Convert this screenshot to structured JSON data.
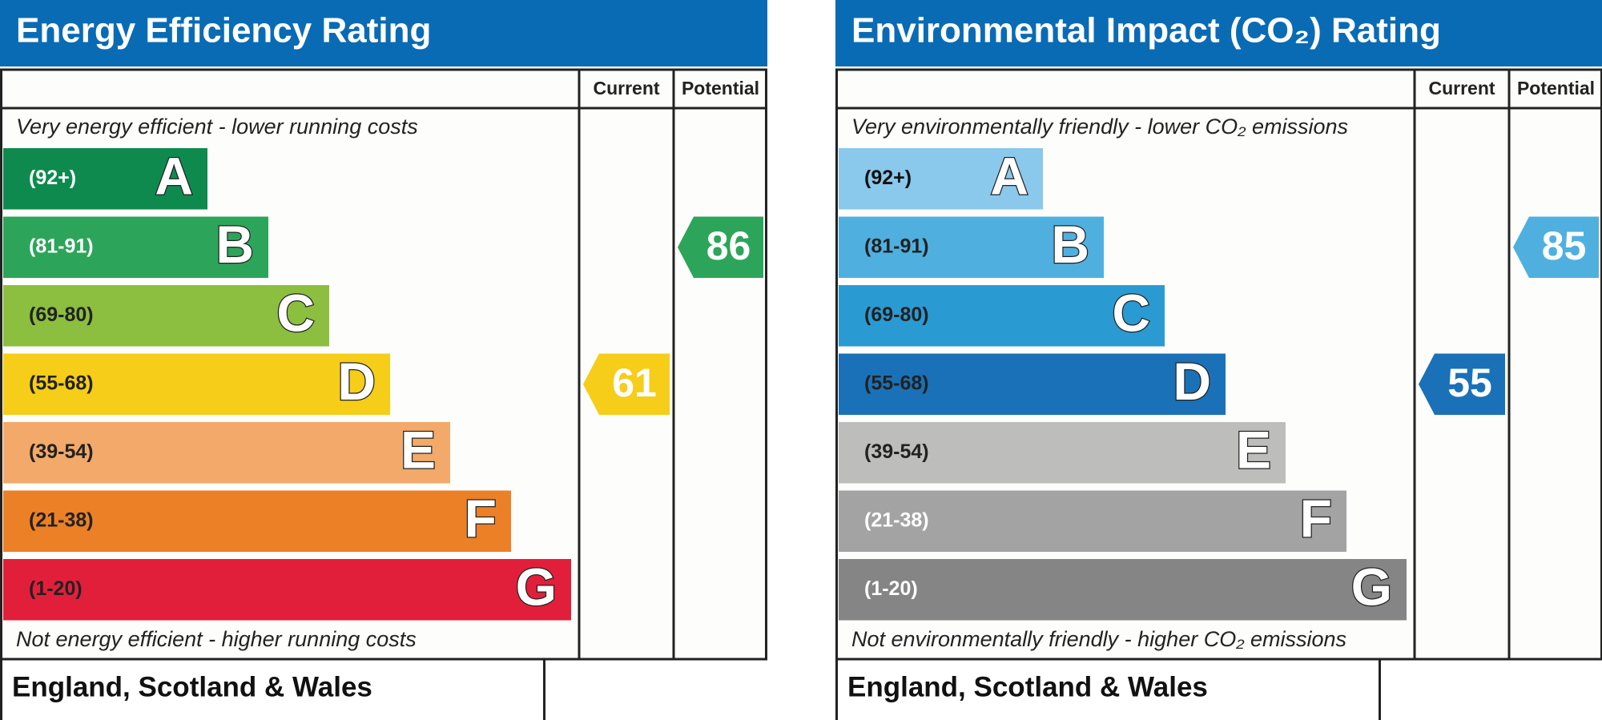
{
  "chart_data": [
    {
      "type": "rating",
      "title": "Energy Efficiency Rating",
      "columns": [
        "Current",
        "Potential"
      ],
      "top_label": "Very energy efficient - lower running costs",
      "bottom_label": "Not energy efficient - higher running costs",
      "bands": [
        {
          "range": "(92+)",
          "letter": "A",
          "color": "#0f8a4f",
          "text_color": "#ffffff"
        },
        {
          "range": "(81-91)",
          "letter": "B",
          "color": "#2ca55a",
          "text_color": "#ffffff"
        },
        {
          "range": "(69-80)",
          "letter": "C",
          "color": "#8cbe3f",
          "text_color": "#222222"
        },
        {
          "range": "(55-68)",
          "letter": "D",
          "color": "#f6cd18",
          "text_color": "#222222"
        },
        {
          "range": "(39-54)",
          "letter": "E",
          "color": "#f2a96a",
          "text_color": "#222222"
        },
        {
          "range": "(21-38)",
          "letter": "F",
          "color": "#ec8026",
          "text_color": "#222222"
        },
        {
          "range": "(1-20)",
          "letter": "G",
          "color": "#e21f3a",
          "text_color": "#222222"
        }
      ],
      "current": 61,
      "potential": 86,
      "footer": "England, Scotland & Wales"
    },
    {
      "type": "rating",
      "title": "Environmental Impact (CO₂) Rating",
      "columns": [
        "Current",
        "Potential"
      ],
      "top_label": "Very environmentally friendly - lower CO₂ emissions",
      "bottom_label": "Not environmentally friendly - higher CO₂ emissions",
      "bands": [
        {
          "range": "(92+)",
          "letter": "A",
          "color": "#8ac8ec",
          "text_color": "#111111"
        },
        {
          "range": "(81-91)",
          "letter": "B",
          "color": "#4fb0e0",
          "text_color": "#222222"
        },
        {
          "range": "(69-80)",
          "letter": "C",
          "color": "#2a9ad3",
          "text_color": "#222222"
        },
        {
          "range": "(55-68)",
          "letter": "D",
          "color": "#1a71b8",
          "text_color": "#222222"
        },
        {
          "range": "(39-54)",
          "letter": "E",
          "color": "#bdbdbb",
          "text_color": "#222222"
        },
        {
          "range": "(21-38)",
          "letter": "F",
          "color": "#a3a3a3",
          "text_color": "#ffffff"
        },
        {
          "range": "(1-20)",
          "letter": "G",
          "color": "#858585",
          "text_color": "#ffffff"
        }
      ],
      "current": 55,
      "potential": 85,
      "footer": "England, Scotland & Wales"
    }
  ]
}
